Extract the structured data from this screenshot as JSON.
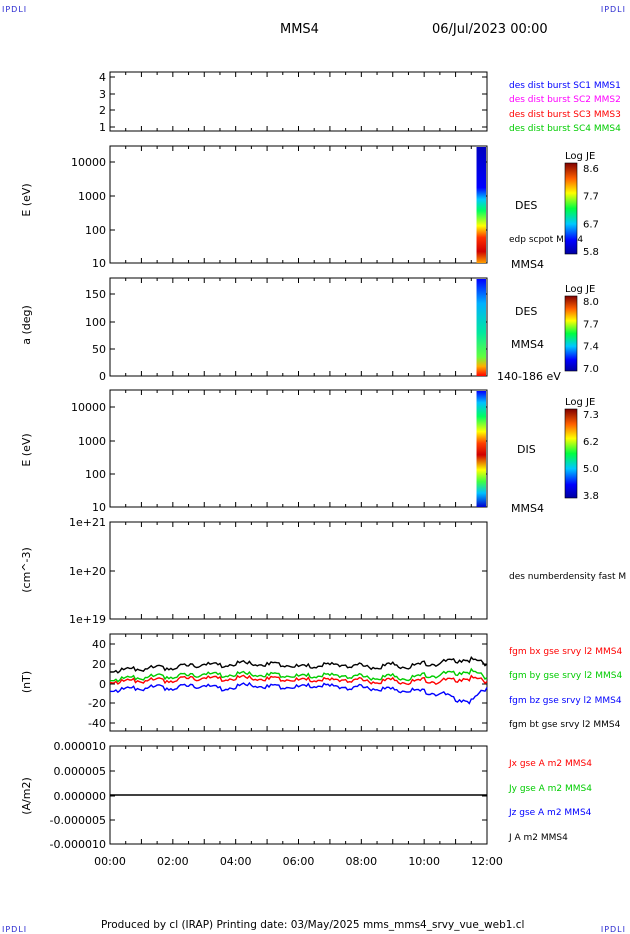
{
  "header": {
    "logo_left": "IPDLI",
    "logo_right": "IPDLI",
    "spacecraft": "MMS4",
    "date": "06/Jul/2023 00:00"
  },
  "footer": {
    "text": "Produced by cl (IRAP)   Printing date: 03/May/2025   mms_mms4_srvy_vue_web1.cl",
    "logo_left": "IPDLI",
    "logo_right": "IPDLI"
  },
  "colors": {
    "blue": "#0000ff",
    "magenta": "#ff00ff",
    "red": "#ff0000",
    "green": "#00cc00",
    "black": "#000000"
  },
  "time_axis": {
    "start": "00:00",
    "end": "12:00",
    "tick_labels": [
      "00:00",
      "02:00",
      "04:00",
      "06:00",
      "08:00",
      "10:00",
      "12:00"
    ]
  },
  "chart_data": [
    {
      "type": "line",
      "panel": "burst-availability",
      "ylim": [
        0.5,
        4.5
      ],
      "ytick_labels": [
        "4",
        "3",
        "2",
        "1"
      ],
      "ylabel": "",
      "legend": [
        {
          "name": "des dist burst SC1 MMS1",
          "color": "#0000ff"
        },
        {
          "name": "des dist burst SC2 MMS2",
          "color": "#ff00ff"
        },
        {
          "name": "des dist burst SC3 MMS3",
          "color": "#ff0000"
        },
        {
          "name": "des dist burst SC4 MMS4",
          "color": "#00cc00"
        }
      ],
      "series": []
    },
    {
      "type": "heatmap",
      "panel": "des-energy",
      "ylabel": "E (eV)",
      "yscale": "log",
      "ylim": [
        10,
        30000
      ],
      "ytick_labels": [
        "10000",
        "1000",
        "100",
        "10"
      ],
      "data_window": [
        "11:40",
        "12:00"
      ],
      "labels": [
        "DES",
        "edp scpot MMS4",
        "MMS4"
      ],
      "colorbar": {
        "title": "Log JE",
        "tick_labels": [
          "8.6",
          "7.7",
          "6.7",
          "5.8"
        ],
        "range": [
          5.8,
          8.6
        ]
      }
    },
    {
      "type": "heatmap",
      "panel": "des-pitch",
      "ylabel": "a (deg)",
      "ylim": [
        0,
        180
      ],
      "ytick_labels": [
        "150",
        "100",
        "50",
        "0"
      ],
      "data_window": [
        "11:40",
        "12:00"
      ],
      "labels": [
        "DES",
        "MMS4",
        "140-186 eV"
      ],
      "colorbar": {
        "title": "Log JE",
        "tick_labels": [
          "8.0",
          "7.7",
          "7.4",
          "7.0"
        ],
        "range": [
          7.0,
          8.0
        ]
      }
    },
    {
      "type": "heatmap",
      "panel": "dis-energy",
      "ylabel": "E (eV)",
      "yscale": "log",
      "ylim": [
        10,
        30000
      ],
      "ytick_labels": [
        "10000",
        "1000",
        "100",
        "10"
      ],
      "data_window": [
        "11:40",
        "12:00"
      ],
      "labels": [
        "DIS",
        "MMS4"
      ],
      "colorbar": {
        "title": "Log JE",
        "tick_labels": [
          "7.3",
          "6.2",
          "5.0",
          "3.8"
        ],
        "range": [
          3.8,
          7.3
        ]
      }
    },
    {
      "type": "line",
      "panel": "density",
      "ylabel": "(cm^-3)",
      "yscale": "log",
      "ylim": [
        1e+19,
        1e+21
      ],
      "ytick_labels": [
        "1e+21",
        "1e+20",
        "1e+19"
      ],
      "legend": [
        {
          "name": "des numberdensity fast M",
          "color": "#000000"
        }
      ],
      "series": []
    },
    {
      "type": "line",
      "panel": "fgm",
      "ylabel": "(nT)",
      "ylim": [
        -50,
        50
      ],
      "ytick_labels": [
        "40",
        "20",
        "0",
        "-20",
        "-40"
      ],
      "legend": [
        {
          "name": "fgm bx gse srvy l2 MMS4",
          "color": "#ff0000"
        },
        {
          "name": "fgm by gse srvy l2 MMS4",
          "color": "#00cc00"
        },
        {
          "name": "fgm bz gse srvy l2 MMS4",
          "color": "#0000ff"
        },
        {
          "name": "fgm bt gse srvy l2 MMS4",
          "color": "#000000"
        }
      ],
      "x_hours": [
        0,
        0.5,
        1,
        1.5,
        2,
        2.5,
        3,
        3.5,
        4,
        4.5,
        5,
        5.5,
        6,
        6.5,
        7,
        7.5,
        8,
        8.5,
        9,
        9.5,
        10,
        10.5,
        11,
        11.5,
        12
      ],
      "series": [
        {
          "name": "fgm bt gse srvy l2 MMS4",
          "color": "#000000",
          "values": [
            12,
            13,
            14,
            15,
            16,
            17,
            19,
            18,
            20,
            19,
            18,
            19,
            16,
            17,
            18,
            18,
            17,
            16,
            18,
            17,
            19,
            20,
            23,
            24,
            19
          ]
        },
        {
          "name": "fgm by gse srvy l2 MMS4",
          "color": "#00cc00",
          "values": [
            3,
            4,
            5,
            6,
            7,
            7,
            9,
            8,
            9,
            8,
            7,
            8,
            6,
            7,
            7,
            7,
            6,
            5,
            6,
            5,
            7,
            8,
            10,
            12,
            5
          ]
        },
        {
          "name": "fgm bx gse srvy l2 MMS4",
          "color": "#ff0000",
          "values": [
            1,
            1,
            2,
            2,
            3,
            4,
            5,
            4,
            5,
            4,
            3,
            4,
            2,
            3,
            2,
            3,
            2,
            1,
            2,
            1,
            2,
            1,
            3,
            5,
            1
          ]
        },
        {
          "name": "fgm bz gse srvy l2 MMS4",
          "color": "#0000ff",
          "values": [
            -8,
            -7,
            -6,
            -5,
            -5,
            -4,
            -3,
            -6,
            -4,
            -3,
            -5,
            -4,
            -5,
            -3,
            -4,
            -5,
            -5,
            -6,
            -8,
            -7,
            -10,
            -11,
            -17,
            -19,
            -5
          ]
        }
      ]
    },
    {
      "type": "line",
      "panel": "current",
      "ylabel": "(A/m2)",
      "ylim": [
        -1e-05,
        1e-05
      ],
      "ytick_labels": [
        "0.000010",
        "0.000005",
        "0.000000",
        "-0.000005",
        "-0.000010"
      ],
      "legend": [
        {
          "name": "Jx gse A m2 MMS4",
          "color": "#ff0000"
        },
        {
          "name": "Jy gse A m2 MMS4",
          "color": "#00cc00"
        },
        {
          "name": "Jz gse A m2 MMS4",
          "color": "#0000ff"
        },
        {
          "name": "J A m2 MMS4",
          "color": "#000000"
        }
      ],
      "x_hours": [
        0,
        12
      ],
      "series": [
        {
          "name": "J A m2 MMS4",
          "color": "#000000",
          "values": [
            0,
            0
          ]
        }
      ]
    }
  ]
}
